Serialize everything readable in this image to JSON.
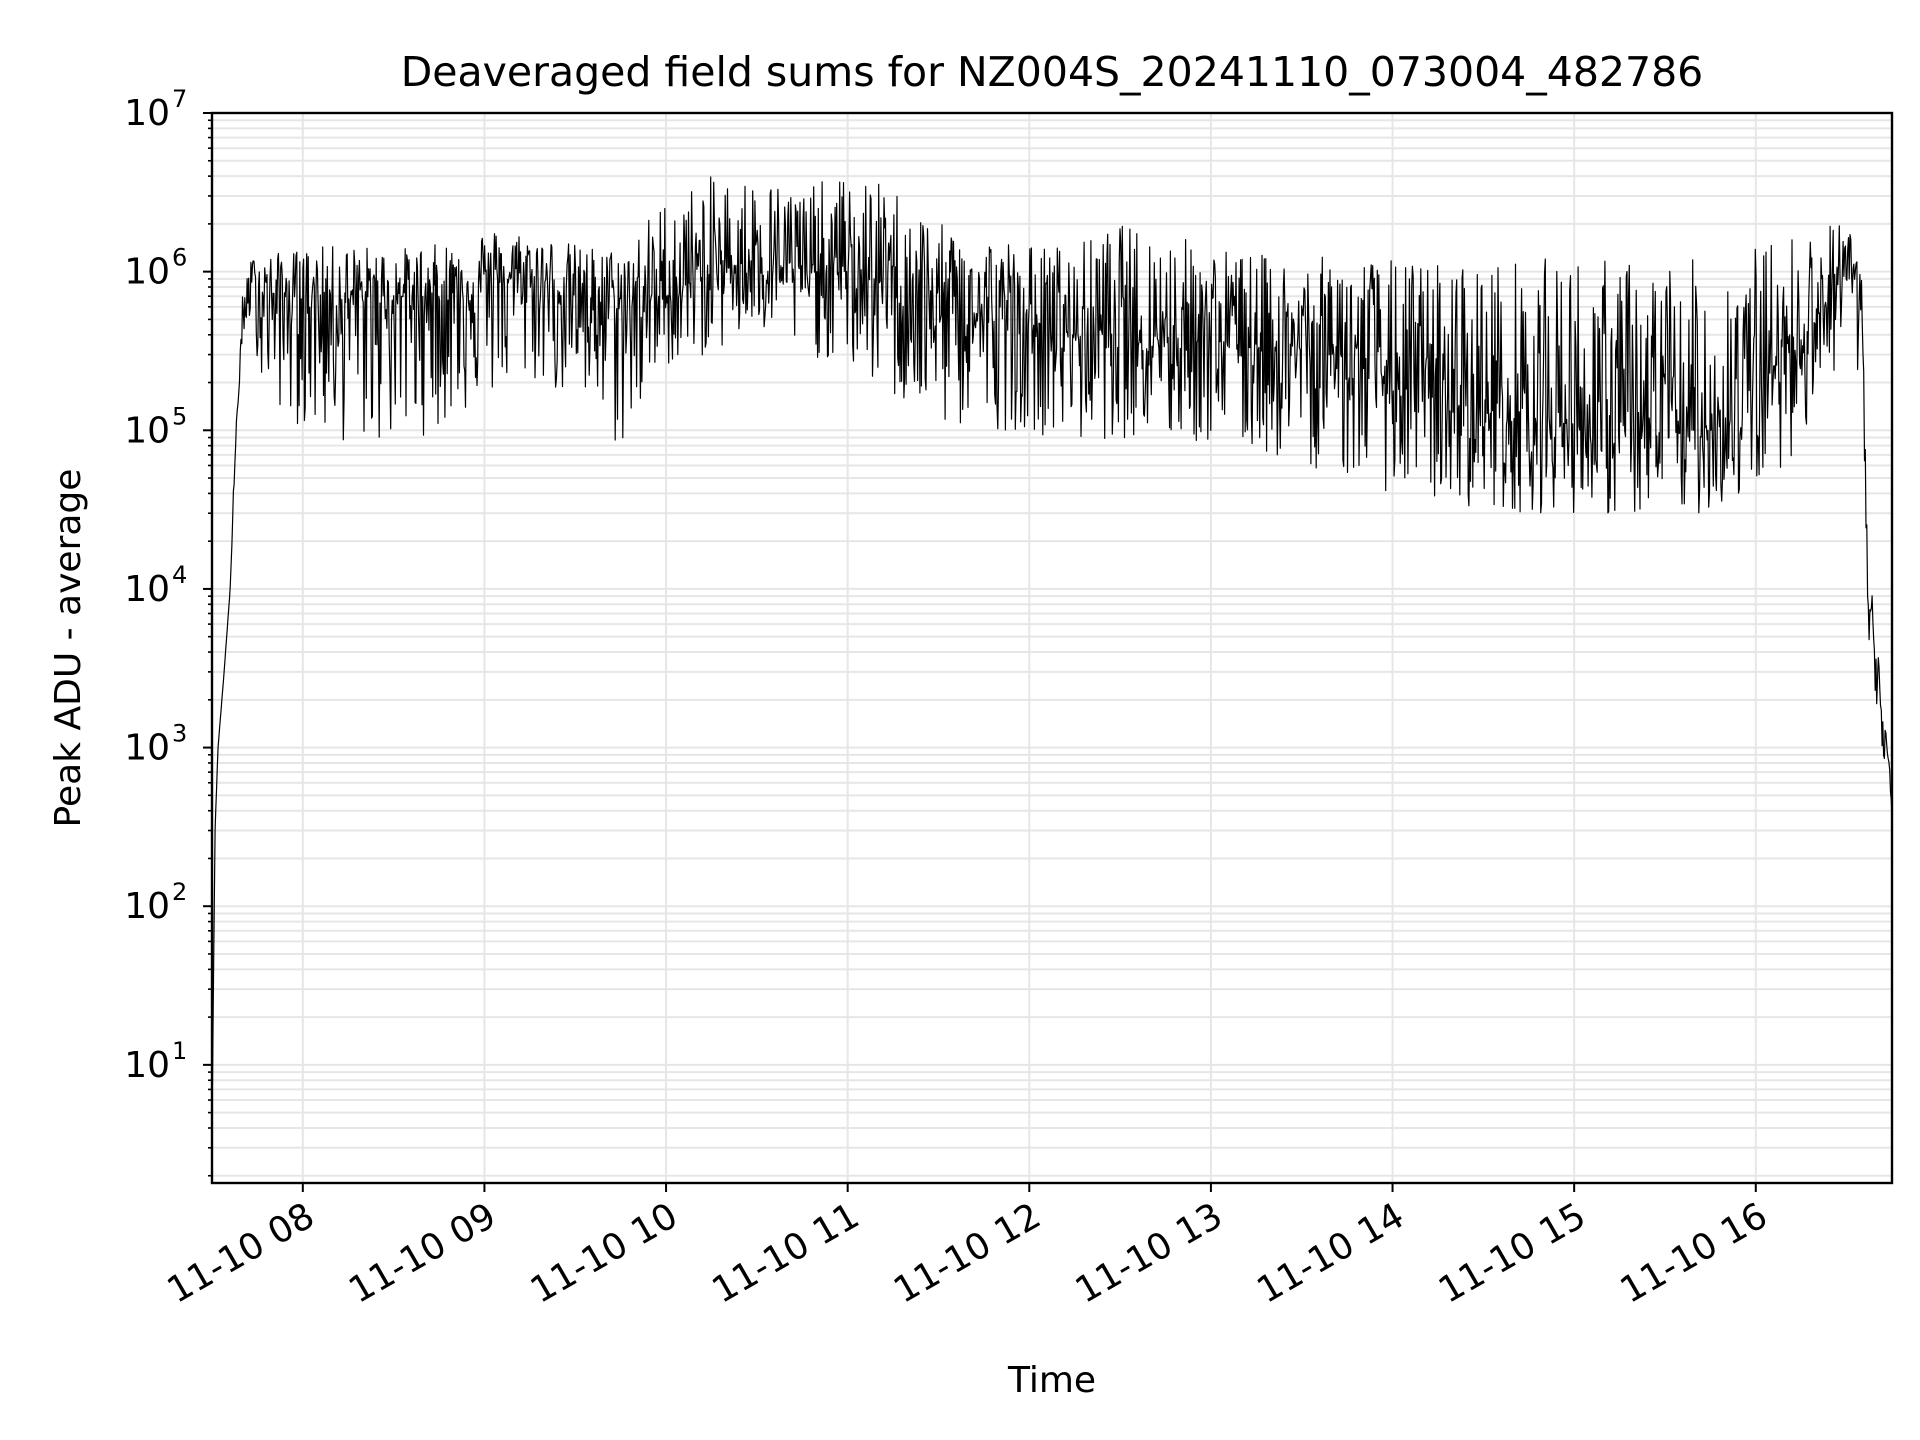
{
  "chart_data": {
    "type": "line",
    "title": "Deaveraged field sums for NZ004S_20241110_073004_482786",
    "xlabel": "Time",
    "ylabel": "Peak ADU - average",
    "yscale": "log",
    "ylim": [
      1.8,
      10000000
    ],
    "xlim": [
      "2024-11-10 07:30",
      "2024-11-10 16:45"
    ],
    "grid": true,
    "legend": "none",
    "line_color": "#000000",
    "grid_color": "#e6e6e6",
    "x_ticks": [
      {
        "value": "2024-11-10 08:00",
        "label": "11-10 08"
      },
      {
        "value": "2024-11-10 09:00",
        "label": "11-10 09"
      },
      {
        "value": "2024-11-10 10:00",
        "label": "11-10 10"
      },
      {
        "value": "2024-11-10 11:00",
        "label": "11-10 11"
      },
      {
        "value": "2024-11-10 12:00",
        "label": "11-10 12"
      },
      {
        "value": "2024-11-10 13:00",
        "label": "11-10 13"
      },
      {
        "value": "2024-11-10 14:00",
        "label": "11-10 14"
      },
      {
        "value": "2024-11-10 15:00",
        "label": "11-10 15"
      },
      {
        "value": "2024-11-10 16:00",
        "label": "11-10 16"
      }
    ],
    "y_ticks": [
      {
        "value": 10,
        "base": "10",
        "exp": "1"
      },
      {
        "value": 100,
        "base": "10",
        "exp": "2"
      },
      {
        "value": 1000,
        "base": "10",
        "exp": "3"
      },
      {
        "value": 10000,
        "base": "10",
        "exp": "4"
      },
      {
        "value": 100000,
        "base": "10",
        "exp": "5"
      },
      {
        "value": 1000000,
        "base": "10",
        "exp": "6"
      },
      {
        "value": 10000000,
        "base": "10",
        "exp": "7"
      }
    ],
    "series": [
      {
        "x": [
          "2024-11-10 07:30",
          "2024-11-10 07:31",
          "2024-11-10 07:32",
          "2024-11-10 07:34",
          "2024-11-10 07:36",
          "2024-11-10 07:38",
          "2024-11-10 07:40",
          "2024-11-10 07:42",
          "2024-11-10 07:44",
          "2024-11-10 07:46",
          "2024-11-10 07:50",
          "2024-11-10 08:00",
          "2024-11-10 08:15",
          "2024-11-10 08:30",
          "2024-11-10 08:45",
          "2024-11-10 09:00",
          "2024-11-10 09:15",
          "2024-11-10 09:30",
          "2024-11-10 09:45",
          "2024-11-10 10:00",
          "2024-11-10 10:15",
          "2024-11-10 10:30",
          "2024-11-10 10:45",
          "2024-11-10 11:00",
          "2024-11-10 11:15",
          "2024-11-10 11:30",
          "2024-11-10 11:45",
          "2024-11-10 12:00",
          "2024-11-10 12:15",
          "2024-11-10 12:30",
          "2024-11-10 12:45",
          "2024-11-10 13:00",
          "2024-11-10 13:15",
          "2024-11-10 13:30",
          "2024-11-10 13:45",
          "2024-11-10 14:00",
          "2024-11-10 14:15",
          "2024-11-10 14:30",
          "2024-11-10 14:45",
          "2024-11-10 15:00",
          "2024-11-10 15:15",
          "2024-11-10 15:30",
          "2024-11-10 15:45",
          "2024-11-10 16:00",
          "2024-11-10 16:15",
          "2024-11-10 16:25",
          "2024-11-10 16:30",
          "2024-11-10 16:33",
          "2024-11-10 16:35",
          "2024-11-10 16:37",
          "2024-11-10 16:39",
          "2024-11-10 16:41",
          "2024-11-10 16:43",
          "2024-11-10 16:45"
        ],
        "y": [
          4,
          300,
          1000,
          3000,
          10000,
          100000,
          400000,
          750000,
          850000,
          800000,
          700000,
          700000,
          650000,
          700000,
          700000,
          900000,
          900000,
          700000,
          600000,
          700000,
          1000000,
          1200000,
          1000000,
          1000000,
          800000,
          600000,
          500000,
          450000,
          400000,
          450000,
          400000,
          380000,
          350000,
          320000,
          300000,
          200000,
          150000,
          130000,
          120000,
          110000,
          100000,
          100000,
          100000,
          180000,
          400000,
          700000,
          1000000,
          1000000,
          500000,
          10000,
          5000,
          2000,
          1000,
          400
        ],
        "band_low": [
          4,
          300,
          1000,
          3000,
          10000,
          100000,
          350000,
          500000,
          400000,
          200000,
          150000,
          100000,
          80000,
          80000,
          100000,
          150000,
          200000,
          150000,
          70000,
          250000,
          300000,
          400000,
          300000,
          250000,
          150000,
          100000,
          100000,
          100000,
          80000,
          90000,
          80000,
          80000,
          70000,
          60000,
          50000,
          40000,
          35000,
          32000,
          30000,
          30000,
          28000,
          28000,
          30000,
          40000,
          80000,
          200000,
          500000,
          500000,
          10000,
          5000,
          2000,
          1000,
          400,
          300
        ],
        "band_high": [
          4,
          300,
          1000,
          3000,
          10000,
          150000,
          700000,
          1100000,
          1300000,
          1300000,
          1300000,
          1400000,
          1500000,
          1400000,
          1500000,
          1900000,
          1800000,
          1500000,
          1400000,
          3000000,
          4000000,
          4000000,
          3500000,
          4000000,
          3500000,
          2000000,
          1800000,
          1500000,
          1500000,
          2000000,
          1800000,
          1500000,
          1300000,
          1200000,
          1300000,
          1200000,
          1200000,
          1200000,
          1200000,
          1300000,
          1200000,
          1200000,
          1200000,
          1500000,
          1800000,
          2000000,
          2500000,
          2000000,
          1000000,
          15000,
          8000,
          3000,
          1500,
          500
        ]
      }
    ]
  }
}
